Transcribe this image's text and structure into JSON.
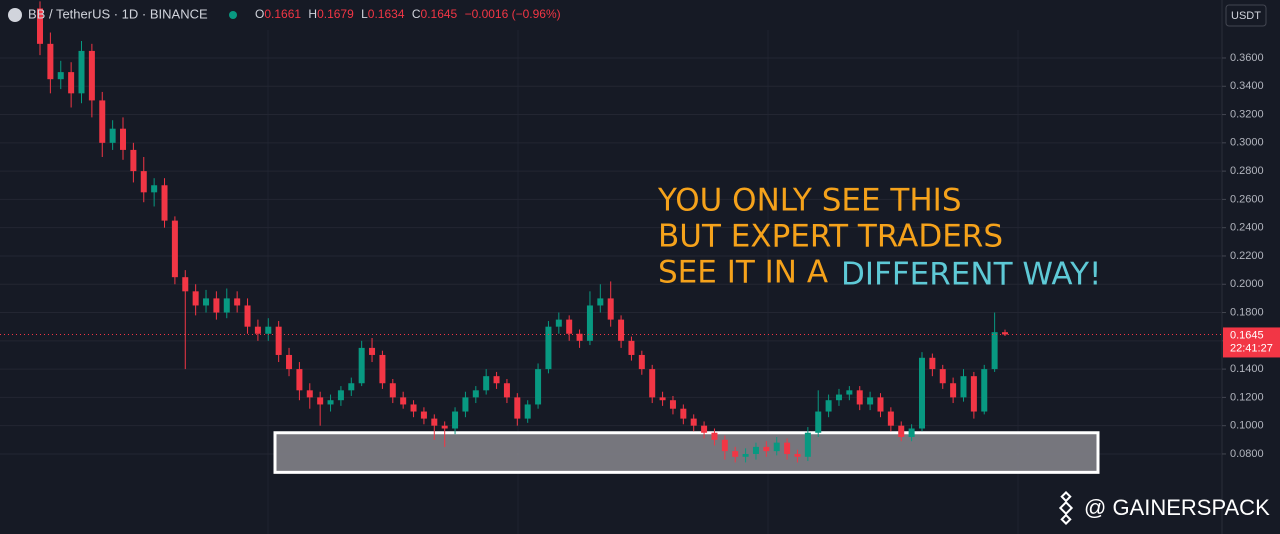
{
  "chart_data": {
    "type": "candlestick",
    "symbol": "BB / TetherUS · 1D · BINANCE",
    "ohlc_labels": [
      "O",
      "H",
      "L",
      "C"
    ],
    "change": "−0.0016 (−0.96%)",
    "currency": "USDT",
    "countdown": "22:41:27",
    "annotation": [
      "YOU ONLY SEE THIS",
      "BUT EXPERT TRADERS",
      "SEE IT IN A",
      "DIFFERENT WAY!"
    ],
    "watermark": "@ GAINERSPACK",
    "up_color": "#089981",
    "down_color": "#f23645",
    "grid": true,
    "zone": [
      0.067,
      0.095
    ],
    "ylim": [
      0.0234,
      0.401
    ],
    "yticks": [
      {
        "value": 0.08,
        "label": "0.0800"
      },
      {
        "value": 0.1,
        "label": "0.1000"
      },
      {
        "value": 0.12,
        "label": "0.1200"
      },
      {
        "value": 0.14,
        "label": "0.1400"
      },
      {
        "value": 0.16,
        "label": "0.1600"
      },
      {
        "value": 0.18,
        "label": "0.1800"
      },
      {
        "value": 0.2,
        "label": "0.2000"
      },
      {
        "value": 0.22,
        "label": "0.2200"
      },
      {
        "value": 0.24,
        "label": "0.2400"
      },
      {
        "value": 0.26,
        "label": "0.2600"
      },
      {
        "value": 0.28,
        "label": "0.2800"
      },
      {
        "value": 0.3,
        "label": "0.3000"
      },
      {
        "value": 0.32,
        "label": "0.3200"
      },
      {
        "value": 0.34,
        "label": "0.3400"
      },
      {
        "value": 0.36,
        "label": "0.3600"
      }
    ],
    "open": [
      0.395,
      0.37,
      0.345,
      0.35,
      0.335,
      0.365,
      0.33,
      0.3,
      0.31,
      0.295,
      0.28,
      0.265,
      0.27,
      0.245,
      0.205,
      0.195,
      0.185,
      0.19,
      0.18,
      0.19,
      0.185,
      0.17,
      0.165,
      0.17,
      0.15,
      0.14,
      0.125,
      0.12,
      0.115,
      0.118,
      0.125,
      0.13,
      0.155,
      0.15,
      0.13,
      0.12,
      0.115,
      0.11,
      0.105,
      0.1,
      0.098,
      0.11,
      0.12,
      0.125,
      0.135,
      0.13,
      0.12,
      0.105,
      0.115,
      0.14,
      0.17,
      0.175,
      0.165,
      0.16,
      0.185,
      0.19,
      0.175,
      0.16,
      0.15,
      0.14,
      0.12,
      0.118,
      0.112,
      0.105,
      0.1,
      0.095,
      0.09,
      0.082,
      0.078,
      0.08,
      0.085,
      0.082,
      0.088,
      0.08,
      0.078,
      0.095,
      0.11,
      0.118,
      0.122,
      0.125,
      0.115,
      0.12,
      0.11,
      0.1,
      0.092,
      0.098,
      0.148,
      0.14,
      0.13,
      0.12,
      0.135,
      0.11,
      0.14,
      0.1661
    ],
    "high": [
      0.4,
      0.378,
      0.358,
      0.357,
      0.372,
      0.37,
      0.336,
      0.316,
      0.318,
      0.3,
      0.29,
      0.275,
      0.275,
      0.248,
      0.21,
      0.2,
      0.196,
      0.195,
      0.197,
      0.195,
      0.19,
      0.175,
      0.176,
      0.174,
      0.155,
      0.145,
      0.13,
      0.124,
      0.122,
      0.128,
      0.134,
      0.16,
      0.162,
      0.153,
      0.133,
      0.124,
      0.118,
      0.113,
      0.108,
      0.103,
      0.113,
      0.124,
      0.128,
      0.14,
      0.138,
      0.133,
      0.123,
      0.118,
      0.144,
      0.174,
      0.18,
      0.178,
      0.168,
      0.195,
      0.2,
      0.202,
      0.178,
      0.163,
      0.153,
      0.143,
      0.124,
      0.121,
      0.115,
      0.108,
      0.103,
      0.098,
      0.093,
      0.085,
      0.084,
      0.088,
      0.089,
      0.092,
      0.091,
      0.083,
      0.099,
      0.125,
      0.122,
      0.126,
      0.128,
      0.128,
      0.124,
      0.123,
      0.113,
      0.103,
      0.101,
      0.152,
      0.151,
      0.143,
      0.134,
      0.14,
      0.138,
      0.143,
      0.18,
      0.1679
    ],
    "low": [
      0.362,
      0.335,
      0.338,
      0.325,
      0.328,
      0.318,
      0.29,
      0.295,
      0.288,
      0.272,
      0.258,
      0.255,
      0.24,
      0.2,
      0.14,
      0.178,
      0.18,
      0.175,
      0.176,
      0.18,
      0.165,
      0.16,
      0.16,
      0.145,
      0.135,
      0.118,
      0.112,
      0.1,
      0.11,
      0.114,
      0.121,
      0.128,
      0.145,
      0.126,
      0.116,
      0.112,
      0.106,
      0.101,
      0.09,
      0.085,
      0.094,
      0.106,
      0.116,
      0.122,
      0.126,
      0.116,
      0.1,
      0.102,
      0.112,
      0.137,
      0.165,
      0.16,
      0.155,
      0.157,
      0.18,
      0.17,
      0.155,
      0.146,
      0.136,
      0.116,
      0.114,
      0.108,
      0.101,
      0.096,
      0.091,
      0.086,
      0.076,
      0.074,
      0.074,
      0.076,
      0.078,
      0.079,
      0.076,
      0.074,
      0.075,
      0.092,
      0.106,
      0.114,
      0.118,
      0.111,
      0.111,
      0.106,
      0.096,
      0.089,
      0.089,
      0.096,
      0.135,
      0.126,
      0.116,
      0.117,
      0.105,
      0.108,
      0.138,
      0.1634
    ],
    "close": [
      0.37,
      0.345,
      0.35,
      0.335,
      0.365,
      0.33,
      0.3,
      0.31,
      0.295,
      0.28,
      0.265,
      0.27,
      0.245,
      0.205,
      0.195,
      0.185,
      0.19,
      0.18,
      0.19,
      0.185,
      0.17,
      0.165,
      0.17,
      0.15,
      0.14,
      0.125,
      0.12,
      0.115,
      0.118,
      0.125,
      0.13,
      0.155,
      0.15,
      0.13,
      0.12,
      0.115,
      0.11,
      0.105,
      0.1,
      0.098,
      0.11,
      0.12,
      0.125,
      0.135,
      0.13,
      0.12,
      0.105,
      0.115,
      0.14,
      0.17,
      0.175,
      0.165,
      0.16,
      0.185,
      0.19,
      0.175,
      0.16,
      0.15,
      0.14,
      0.12,
      0.118,
      0.112,
      0.105,
      0.1,
      0.095,
      0.09,
      0.082,
      0.078,
      0.08,
      0.085,
      0.082,
      0.088,
      0.08,
      0.078,
      0.095,
      0.11,
      0.118,
      0.122,
      0.125,
      0.115,
      0.12,
      0.11,
      0.1,
      0.092,
      0.098,
      0.148,
      0.14,
      0.13,
      0.12,
      0.135,
      0.11,
      0.14,
      0.1661,
      0.1645
    ]
  }
}
